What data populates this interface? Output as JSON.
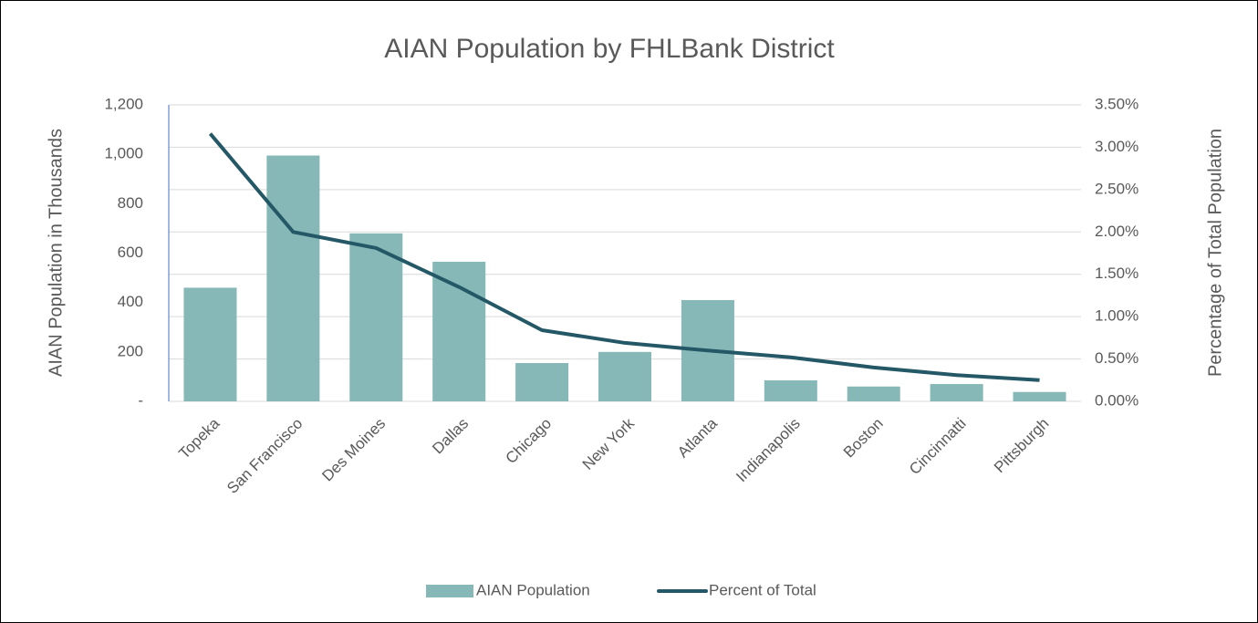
{
  "chart_data": {
    "type": "bar-line",
    "title": "AIAN Population by FHLBank District",
    "y_label": "AIAN Population in Thousands",
    "y2_label": "Percentage of Total Population",
    "categories": [
      "Topeka",
      "San Francisco",
      "Des Moines",
      "Dallas",
      "Chicago",
      "New York",
      "Atlanta",
      "Indianapolis",
      "Boston",
      "Cincinnatti",
      "Pittsburgh"
    ],
    "series": [
      {
        "name": "AIAN Population",
        "type": "bar",
        "color": "#86b8b8",
        "values": [
          460,
          995,
          680,
          565,
          155,
          200,
          410,
          85,
          60,
          70,
          38
        ]
      },
      {
        "name": "Percent of Total",
        "type": "line",
        "axis": "y2",
        "color": "#245866",
        "values": [
          3.16,
          2.0,
          1.81,
          1.35,
          0.84,
          0.69,
          0.6,
          0.52,
          0.4,
          0.31,
          0.25
        ]
      }
    ],
    "ylim": [
      0,
      1200
    ],
    "yticks": [
      {
        "value": 0,
        "label": "-"
      },
      200,
      400,
      600,
      800,
      {
        "value": 1000,
        "label": "1,000"
      },
      {
        "value": 1200,
        "label": "1,200"
      }
    ],
    "y2lim": [
      0,
      3.5
    ],
    "y2ticks": [
      {
        "value": 0,
        "label": "0.00%"
      },
      {
        "value": 0.5,
        "label": "0.50%"
      },
      {
        "value": 1,
        "label": "1.00%"
      },
      {
        "value": 1.5,
        "label": "1.50%"
      },
      {
        "value": 2,
        "label": "2.00%"
      },
      {
        "value": 2.5,
        "label": "2.50%"
      },
      {
        "value": 3,
        "label": "3.00%"
      },
      {
        "value": 3.5,
        "label": "3.50%"
      }
    ],
    "grid": true,
    "legend": "bottom"
  }
}
